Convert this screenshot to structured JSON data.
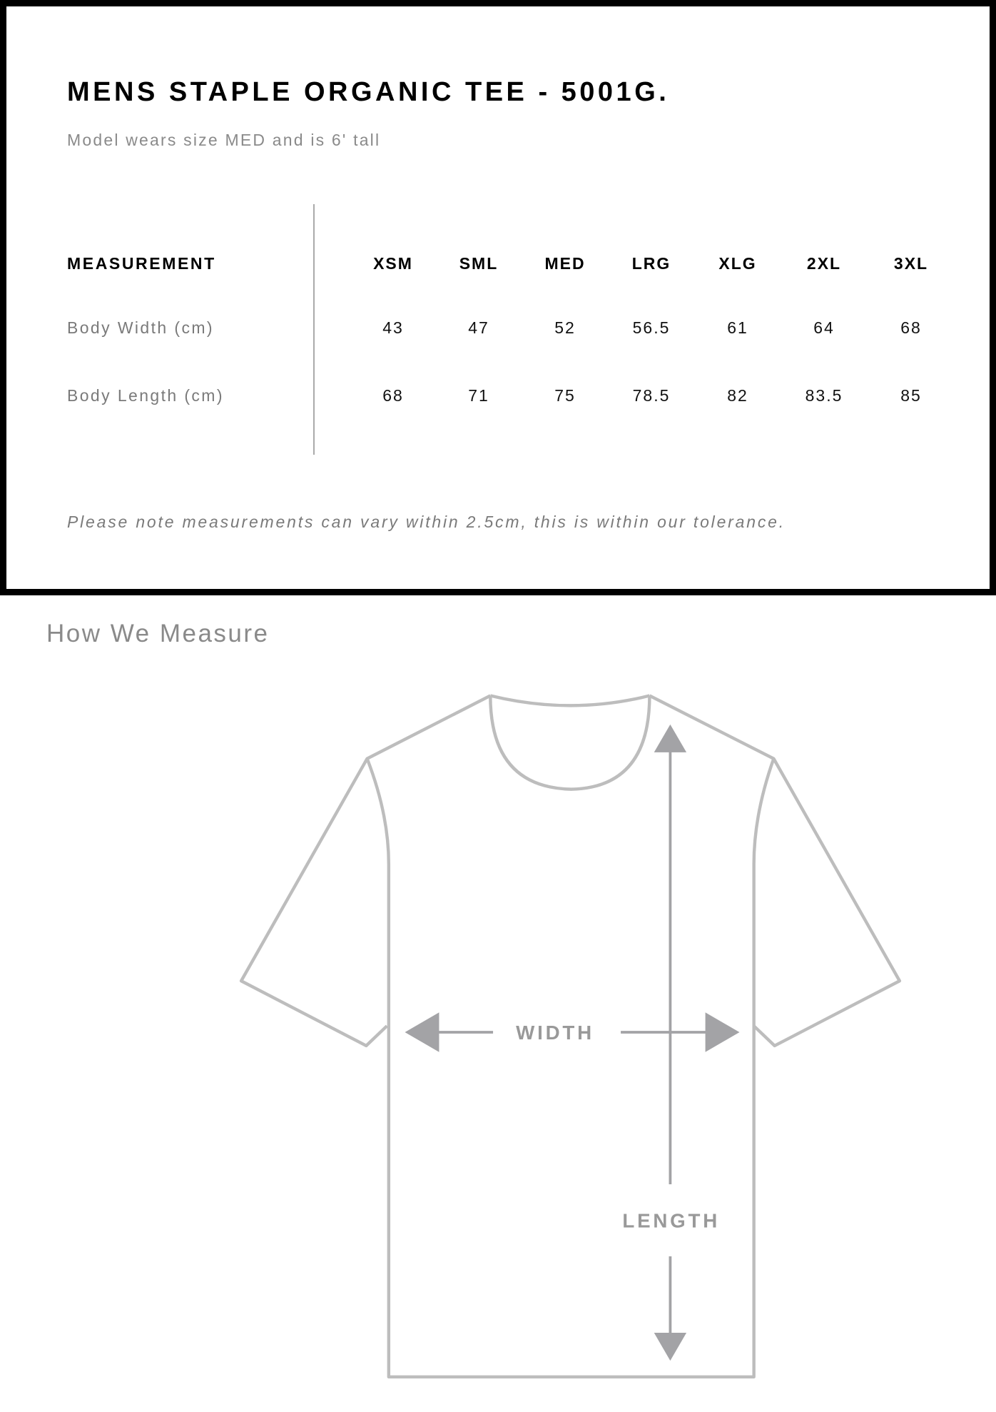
{
  "header": {
    "title": "MENS STAPLE ORGANIC TEE - 5001G.",
    "subtitle": "Model wears size MED and is 6' tall"
  },
  "size_table": {
    "measurement_header": "MEASUREMENT",
    "sizes": [
      "XSM",
      "SML",
      "MED",
      "LRG",
      "XLG",
      "2XL",
      "3XL"
    ],
    "rows": [
      {
        "label": "Body Width (cm)",
        "values": [
          "43",
          "47",
          "52",
          "56.5",
          "61",
          "64",
          "68"
        ]
      },
      {
        "label": "Body Length (cm)",
        "values": [
          "68",
          "71",
          "75",
          "78.5",
          "82",
          "83.5",
          "85"
        ]
      }
    ]
  },
  "note": "Please note measurements can vary within 2.5cm, this is within our tolerance.",
  "how_we_measure": {
    "heading": "How We Measure",
    "width_label": "WIDTH",
    "length_label": "LENGTH"
  },
  "colors": {
    "outline": "#bdbdbd",
    "arrow": "#a3a3a6",
    "border": "#000000"
  }
}
